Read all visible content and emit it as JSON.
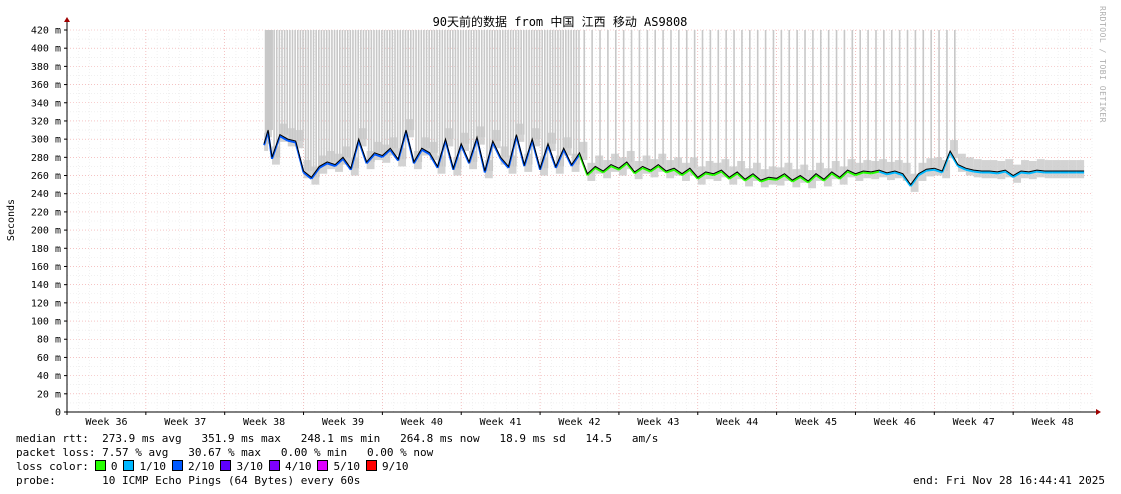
{
  "chart_data": {
    "type": "line",
    "title": "90天前的数据 from 中国 江西 移动 AS9808",
    "ylabel": "Seconds",
    "ylim": [
      0,
      420
    ],
    "y_ticks": [
      {
        "v": 0,
        "label": "0"
      },
      {
        "v": 20,
        "label": "20 m"
      },
      {
        "v": 40,
        "label": "40 m"
      },
      {
        "v": 60,
        "label": "60 m"
      },
      {
        "v": 80,
        "label": "80 m"
      },
      {
        "v": 100,
        "label": "100 m"
      },
      {
        "v": 120,
        "label": "120 m"
      },
      {
        "v": 140,
        "label": "140 m"
      },
      {
        "v": 160,
        "label": "160 m"
      },
      {
        "v": 180,
        "label": "180 m"
      },
      {
        "v": 200,
        "label": "200 m"
      },
      {
        "v": 220,
        "label": "220 m"
      },
      {
        "v": 240,
        "label": "240 m"
      },
      {
        "v": 260,
        "label": "260 m"
      },
      {
        "v": 280,
        "label": "280 m"
      },
      {
        "v": 300,
        "label": "300 m"
      },
      {
        "v": 320,
        "label": "320 m"
      },
      {
        "v": 340,
        "label": "340 m"
      },
      {
        "v": 360,
        "label": "360 m"
      },
      {
        "v": 380,
        "label": "380 m"
      },
      {
        "v": 400,
        "label": "400 m"
      },
      {
        "v": 420,
        "label": "420 m"
      }
    ],
    "xlim": [
      35.5,
      48.5
    ],
    "x_ticks": [
      "Week 36",
      "Week 37",
      "Week 38",
      "Week 39",
      "Week 40",
      "Week 41",
      "Week 42",
      "Week 43",
      "Week 44",
      "Week 45",
      "Week 46",
      "Week 47",
      "Week 48"
    ],
    "x_tick_values": [
      36,
      37,
      38,
      39,
      40,
      41,
      42,
      43,
      44,
      45,
      46,
      47,
      48
    ],
    "grid": true,
    "series": [
      {
        "name": "median rtt",
        "x": [
          38.0,
          38.05,
          38.1,
          38.2,
          38.3,
          38.4,
          38.5,
          38.6,
          38.7,
          38.8,
          38.9,
          39.0,
          39.1,
          39.2,
          39.3,
          39.4,
          39.5,
          39.6,
          39.7,
          39.8,
          39.9,
          40.0,
          40.1,
          40.2,
          40.3,
          40.4,
          40.5,
          40.6,
          40.7,
          40.8,
          40.9,
          41.0,
          41.1,
          41.2,
          41.3,
          41.4,
          41.5,
          41.6,
          41.7,
          41.8,
          41.9,
          42.0,
          42.1,
          42.2,
          42.3,
          42.4,
          42.5,
          42.6,
          42.7,
          42.8,
          42.9,
          43.0,
          43.1,
          43.2,
          43.3,
          43.4,
          43.5,
          43.6,
          43.7,
          43.8,
          43.9,
          44.0,
          44.1,
          44.2,
          44.3,
          44.4,
          44.5,
          44.6,
          44.7,
          44.8,
          44.9,
          45.0,
          45.1,
          45.2,
          45.3,
          45.4,
          45.5,
          45.6,
          45.7,
          45.8,
          45.9,
          46.0,
          46.1,
          46.2,
          46.3,
          46.4,
          46.5,
          46.6,
          46.7,
          46.8,
          46.9,
          47.0,
          47.1,
          47.2,
          47.3,
          47.4,
          47.5,
          47.6,
          47.7,
          47.8,
          47.9,
          48.0,
          48.1,
          48.2,
          48.3,
          48.4
        ],
        "y": [
          295,
          310,
          280,
          305,
          300,
          298,
          265,
          258,
          270,
          275,
          272,
          280,
          268,
          300,
          275,
          285,
          282,
          290,
          278,
          310,
          275,
          290,
          285,
          270,
          300,
          268,
          295,
          275,
          302,
          265,
          298,
          280,
          270,
          305,
          272,
          300,
          268,
          295,
          270,
          290,
          272,
          285,
          262,
          270,
          265,
          272,
          268,
          275,
          264,
          270,
          266,
          272,
          265,
          268,
          262,
          268,
          258,
          264,
          262,
          266,
          258,
          264,
          256,
          262,
          255,
          258,
          257,
          262,
          255,
          260,
          254,
          262,
          256,
          264,
          258,
          266,
          262,
          265,
          264,
          266,
          263,
          265,
          262,
          250,
          262,
          267,
          268,
          265,
          287,
          272,
          268,
          266,
          265,
          265,
          264,
          266,
          260,
          265,
          264,
          266,
          265,
          265,
          265,
          265,
          265,
          265
        ]
      }
    ],
    "summary": {
      "median_label": "median rtt:",
      "median_values": "273.9 ms avg   351.9 ms max   248.1 ms min   264.8 ms now   18.9 ms sd   14.5   am/s",
      "loss_label": "packet loss:",
      "loss_values": "7.57 % avg   30.67 % max   0.00 % min   0.00 % now",
      "color_label": "loss color:",
      "loss_colors": [
        {
          "label": "0",
          "color": "#26ff00"
        },
        {
          "label": "1/10",
          "color": "#00b8ff"
        },
        {
          "label": "2/10",
          "color": "#0059ff"
        },
        {
          "label": "3/10",
          "color": "#5e00ff"
        },
        {
          "label": "4/10",
          "color": "#7e00ff"
        },
        {
          "label": "5/10",
          "color": "#dd00ff"
        },
        {
          "label": "9/10",
          "color": "#ff0000"
        }
      ],
      "probe_label": "probe:",
      "probe_value": "10 ICMP Echo Pings (64 Bytes) every 60s",
      "end_label": "end: Fri Nov 28 16:44:41 2025"
    },
    "watermark": "RRDTOOL / TOBI OETIKER",
    "colors": {
      "median": "#000000",
      "smoke": "#c8c8c8",
      "grid_minor": "#e8e8e8",
      "grid_major": "#f0a0a0",
      "axis": "#000000",
      "arrow": "#a00000"
    }
  }
}
